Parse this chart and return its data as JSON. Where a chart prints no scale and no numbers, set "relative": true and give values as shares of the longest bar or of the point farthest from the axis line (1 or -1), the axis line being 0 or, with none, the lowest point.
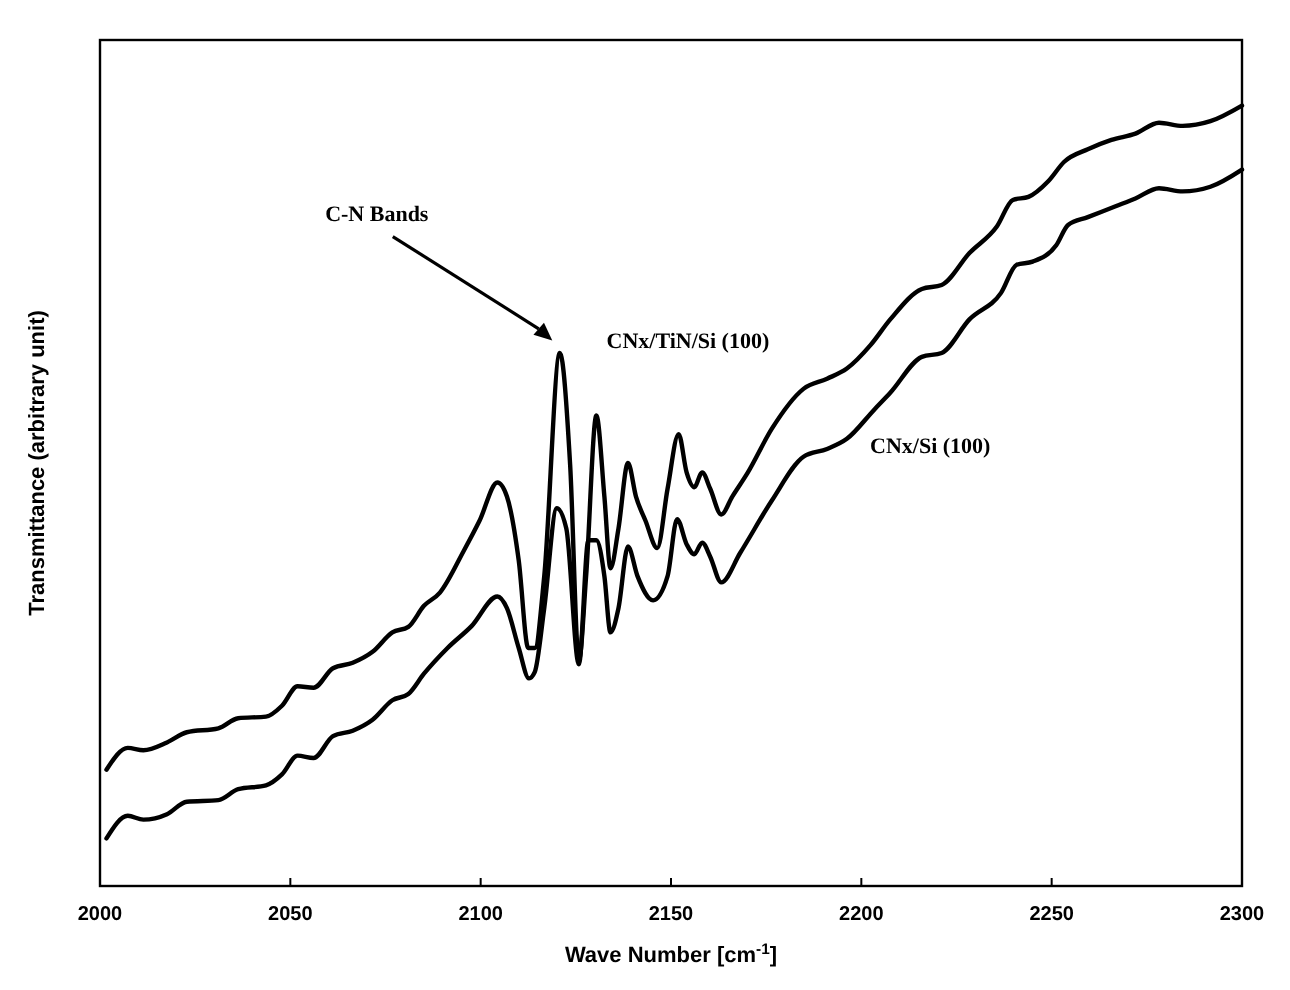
{
  "chart_data": {
    "type": "line",
    "relative": true,
    "xlabel": "Wave Number [cm$^{-1}$]",
    "ylabel": "Transmittance (arbitrary unit)",
    "xlim": [
      2000,
      2300
    ],
    "xticks": [
      2000,
      2050,
      2100,
      2150,
      2200,
      2250,
      2300
    ],
    "line_style": "solid",
    "annotations": [
      "C-N Bands"
    ],
    "series": [
      {
        "name": "CNx/TiN/Si (100)",
        "color": "#000000",
        "x": [
          2001.7,
          2007.3,
          2011.4,
          2017.6,
          2022.8,
          2031.1,
          2036.3,
          2043.6,
          2047.8,
          2051.9,
          2056.1,
          2061.2,
          2066.4,
          2071.6,
          2076.8,
          2081.0,
          2085.1,
          2089.3,
          2095.5,
          2099.7,
          2104.4,
          2106.9,
          2110.0,
          2112.5,
          2114.2,
          2116.7,
          2120.8,
          2123.5,
          2125.8,
          2127.7,
          2130.4,
          2132.5,
          2134.1,
          2136.2,
          2138.7,
          2140.8,
          2143.3,
          2146.4,
          2149.1,
          2152.0,
          2154.1,
          2156.1,
          2158.2,
          2160.3,
          2163.2,
          2166.1,
          2170.2,
          2176.5,
          2184.8,
          2191.0,
          2196.2,
          2202.4,
          2207.6,
          2215.9,
          2221.1,
          2228.4,
          2235.6,
          2239.8,
          2243.9,
          2249.1,
          2253.3,
          2259.5,
          2265.7,
          2272.0,
          2278.2,
          2284.4,
          2291.7,
          2300
        ],
        "values": [
          0.149,
          0.177,
          0.174,
          0.184,
          0.197,
          0.202,
          0.215,
          0.217,
          0.231,
          0.256,
          0.254,
          0.279,
          0.286,
          0.3,
          0.325,
          0.332,
          0.359,
          0.376,
          0.429,
          0.468,
          0.517,
          0.499,
          0.417,
          0.305,
          0.305,
          0.397,
          0.683,
          0.54,
          0.289,
          0.397,
          0.603,
          0.499,
          0.407,
          0.458,
          0.542,
          0.499,
          0.468,
          0.433,
          0.509,
          0.579,
          0.53,
          0.511,
          0.53,
          0.509,
          0.476,
          0.499,
          0.53,
          0.586,
          0.637,
          0.65,
          0.663,
          0.693,
          0.726,
          0.765,
          0.77,
          0.811,
          0.845,
          0.879,
          0.883,
          0.903,
          0.928,
          0.944,
          0.956,
          0.964,
          0.978,
          0.974,
          0.98,
          1
        ]
      },
      {
        "name": "CNx/Si (100)",
        "color": "#000000",
        "x": [
          2001.7,
          2007.3,
          2011.4,
          2017.6,
          2022.8,
          2031.1,
          2036.3,
          2043.6,
          2047.8,
          2051.9,
          2056.1,
          2061.2,
          2066.4,
          2071.6,
          2076.8,
          2081.0,
          2085.1,
          2091.3,
          2097.6,
          2104.4,
          2106.9,
          2110.0,
          2112.7,
          2114.2,
          2116.7,
          2120.0,
          2122.5,
          2125.8,
          2128.3,
          2130.4,
          2132.5,
          2134.1,
          2136.2,
          2138.7,
          2141.2,
          2145.3,
          2149.1,
          2151.6,
          2154.1,
          2156.1,
          2158.2,
          2160.3,
          2163.2,
          2168.2,
          2176.5,
          2184.8,
          2191.0,
          2196.2,
          2203.5,
          2207.6,
          2215.9,
          2221.1,
          2228.4,
          2236.7,
          2240.8,
          2245.0,
          2251.2,
          2254.3,
          2259.5,
          2266.8,
          2272.0,
          2278.2,
          2284.4,
          2291.7,
          2300
        ],
        "values": [
          0.061,
          0.09,
          0.085,
          0.092,
          0.108,
          0.11,
          0.124,
          0.129,
          0.143,
          0.167,
          0.164,
          0.192,
          0.199,
          0.213,
          0.238,
          0.246,
          0.272,
          0.305,
          0.333,
          0.371,
          0.356,
          0.305,
          0.266,
          0.274,
          0.356,
          0.484,
          0.458,
          0.284,
          0.443,
          0.443,
          0.397,
          0.325,
          0.356,
          0.435,
          0.397,
          0.366,
          0.397,
          0.47,
          0.438,
          0.425,
          0.44,
          0.422,
          0.389,
          0.427,
          0.494,
          0.55,
          0.56,
          0.573,
          0.611,
          0.632,
          0.678,
          0.683,
          0.726,
          0.76,
          0.796,
          0.8,
          0.821,
          0.847,
          0.857,
          0.871,
          0.881,
          0.894,
          0.89,
          0.896,
          0.918
        ]
      }
    ]
  }
}
